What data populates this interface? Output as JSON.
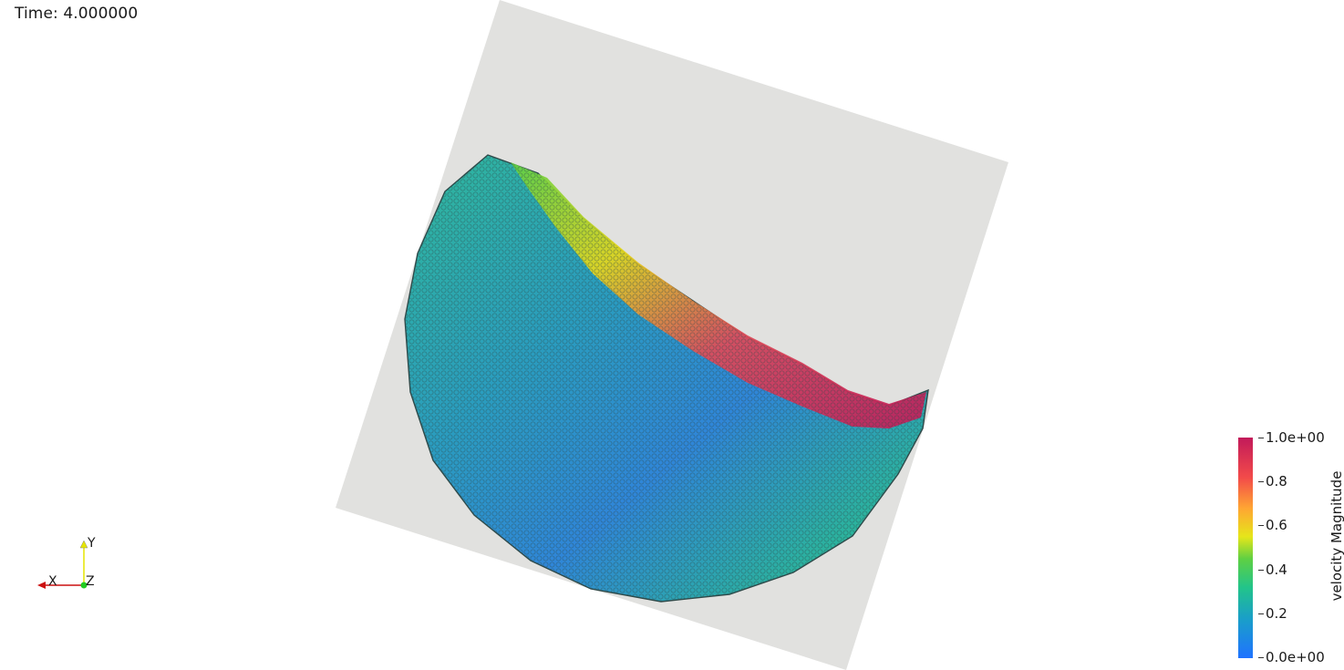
{
  "overlay": {
    "time_text": "Time: 4.000000"
  },
  "scalar_bar": {
    "title": "velocity Magnitude",
    "ticks": [
      "1.0e+00",
      "0.8",
      "0.6",
      "0.4",
      "0.2",
      "0.0e+00"
    ],
    "range": [
      0.0,
      1.0
    ],
    "colors": [
      "#1f73ff",
      "#1a9fc8",
      "#22c48a",
      "#5fd043",
      "#e6e61a",
      "#ffa533",
      "#f24a4a",
      "#c21a5a"
    ]
  },
  "orientation_axes": {
    "x_label": "X",
    "y_label": "Y",
    "z_label": "Z",
    "x_color": "#cc1111",
    "y_color": "#e6e600",
    "z_color": "#22cc22"
  },
  "scene": {
    "plane_color": "#e1e1df",
    "particle_outline_color": "#2e4a4a"
  }
}
